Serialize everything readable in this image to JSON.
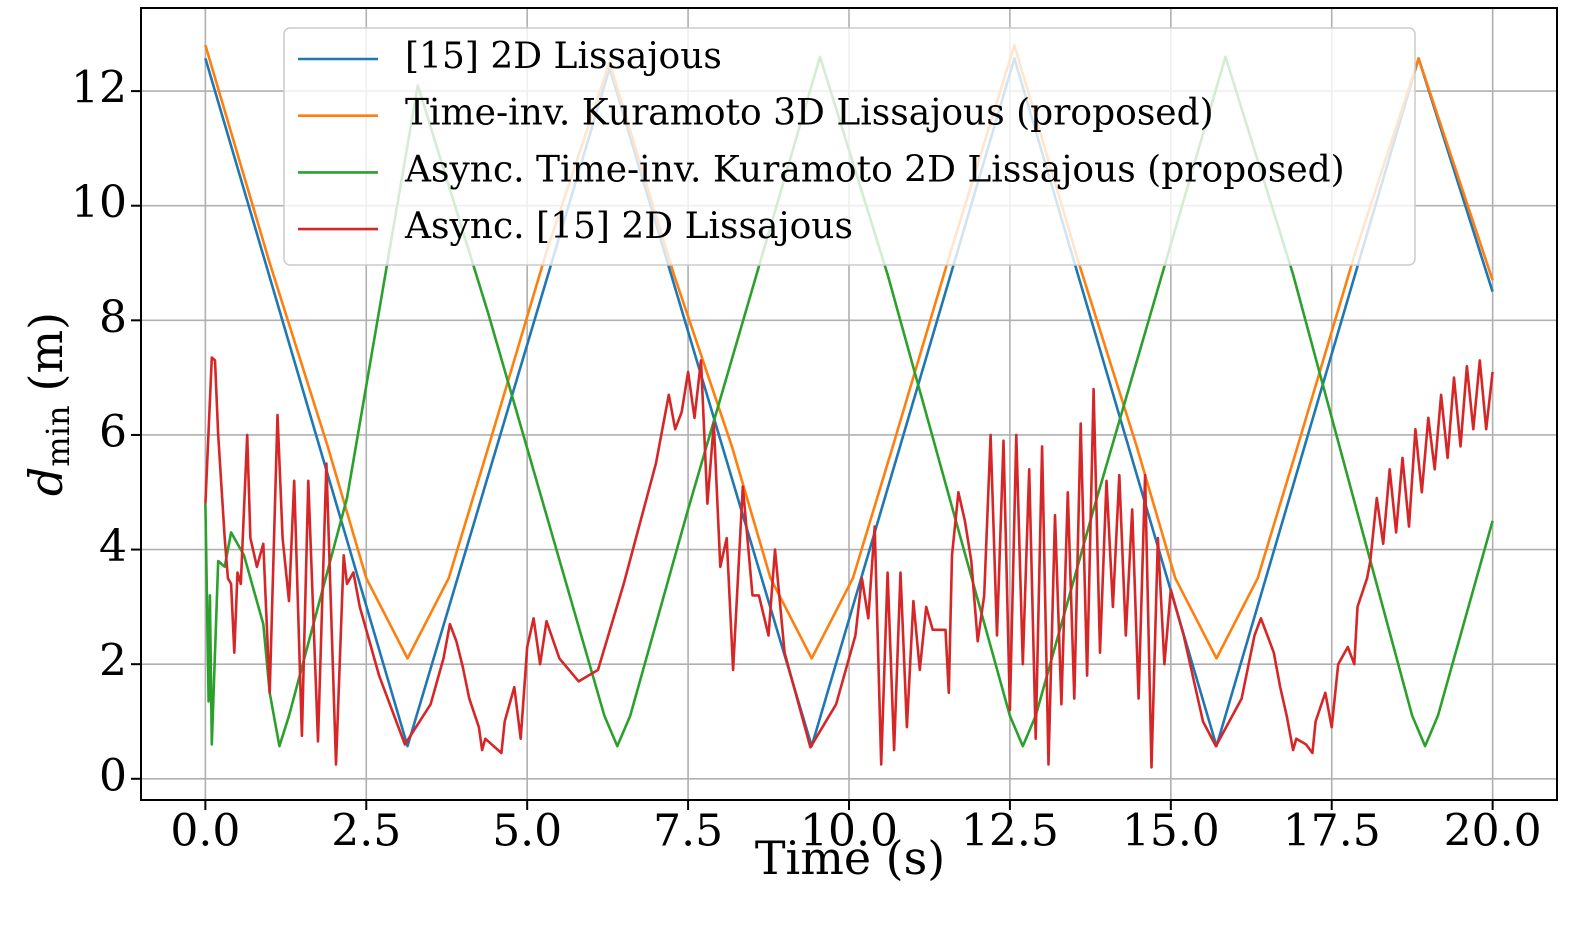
{
  "chart_data": {
    "type": "line",
    "xlabel": "Time (s)",
    "ylabel": [
      "d",
      "min",
      "(m)"
    ],
    "xlim": [
      -1,
      21
    ],
    "ylim": [
      -0.37,
      13.45
    ],
    "xticks": [
      {
        "value": 0,
        "label": "0.0"
      },
      2.5,
      {
        "value": 5,
        "label": "5.0"
      },
      7.5,
      {
        "value": 10,
        "label": "10.0"
      },
      12.5,
      {
        "value": 15,
        "label": "15.0"
      },
      17.5,
      {
        "value": 20,
        "label": "20.0"
      }
    ],
    "yticks": [
      0,
      2,
      4,
      6,
      8,
      10,
      12
    ],
    "grid": true,
    "legend": "top",
    "series": [
      {
        "name": "[15] 2D Lissajous",
        "color": "#1f77b4",
        "x": [
          0,
          3.14,
          6.28,
          9.42,
          12.57,
          15.71,
          18.85,
          20
        ],
        "values": [
          12.57,
          0.57,
          12.4,
          0.57,
          12.57,
          0.57,
          12.57,
          8.5
        ]
      },
      {
        "name": "Time-inv. Kuramoto 3D Lissajous (proposed)",
        "color": "#ff7f0e",
        "x": [
          0,
          1,
          1.9,
          2.5,
          3.14,
          3.78,
          4.4,
          5.3,
          6.28,
          7.28,
          8.18,
          8.78,
          9.42,
          10.06,
          10.68,
          11.58,
          12.57,
          13.57,
          14.47,
          15.07,
          15.71,
          16.35,
          16.97,
          17.87,
          18.85,
          20
        ],
        "values": [
          12.8,
          9.0,
          5.8,
          3.5,
          2.1,
          3.5,
          5.8,
          9.2,
          12.5,
          8.8,
          5.8,
          3.5,
          2.1,
          3.5,
          5.8,
          9.2,
          12.8,
          9.0,
          5.8,
          3.5,
          2.1,
          3.5,
          5.8,
          9.2,
          12.57,
          8.7
        ]
      },
      {
        "name": "Async. Time-inv. Kuramoto 2D Lissajous (proposed)",
        "color": "#2ca02c",
        "x": [
          0,
          0.05,
          0.07,
          0.1,
          0.2,
          0.3,
          0.4,
          0.55,
          0.6,
          0.9,
          1.0,
          1.15,
          1.3,
          2.2,
          3.3,
          4.4,
          6.2,
          6.4,
          6.6,
          7.5,
          9.55,
          10.6,
          12.5,
          12.7,
          12.9,
          13.8,
          15.85,
          16.9,
          18.75,
          18.95,
          19.15,
          20
        ],
        "values": [
          4.8,
          1.35,
          3.2,
          0.6,
          3.8,
          3.7,
          4.3,
          4.0,
          3.9,
          2.7,
          1.5,
          0.57,
          1.1,
          4.9,
          12.1,
          8.1,
          1.1,
          0.57,
          1.1,
          4.7,
          12.6,
          8.8,
          1.1,
          0.57,
          1.1,
          4.7,
          12.6,
          8.8,
          1.1,
          0.57,
          1.1,
          4.5
        ]
      },
      {
        "name": "Async. [15] 2D Lissajous",
        "color": "#d62728",
        "x": [
          0,
          0.1,
          0.15,
          0.2,
          0.3,
          0.35,
          0.4,
          0.45,
          0.5,
          0.55,
          0.65,
          0.7,
          0.8,
          0.9,
          1.0,
          1.12,
          1.2,
          1.3,
          1.38,
          1.5,
          1.6,
          1.75,
          1.88,
          2.03,
          2.15,
          2.2,
          2.3,
          2.4,
          2.7,
          3.1,
          3.5,
          3.7,
          3.8,
          3.9,
          4.0,
          4.1,
          4.25,
          4.3,
          4.35,
          4.5,
          4.6,
          4.65,
          4.8,
          4.9,
          5.0,
          5.1,
          5.2,
          5.3,
          5.5,
          5.8,
          6.1,
          6.5,
          7.0,
          7.2,
          7.3,
          7.4,
          7.5,
          7.6,
          7.7,
          7.8,
          7.9,
          8.0,
          8.1,
          8.2,
          8.35,
          8.5,
          8.6,
          8.75,
          8.85,
          9.0,
          9.4,
          9.8,
          10.1,
          10.2,
          10.3,
          10.4,
          10.5,
          10.6,
          10.7,
          10.8,
          10.9,
          11.0,
          11.1,
          11.2,
          11.3,
          11.5,
          11.55,
          11.6,
          11.7,
          11.8,
          11.9,
          12.0,
          12.1,
          12.2,
          12.3,
          12.4,
          12.5,
          12.6,
          12.7,
          12.8,
          12.9,
          13.0,
          13.1,
          13.2,
          13.3,
          13.4,
          13.5,
          13.6,
          13.7,
          13.8,
          13.9,
          14.0,
          14.1,
          14.2,
          14.3,
          14.4,
          14.5,
          14.6,
          14.7,
          14.8,
          14.9,
          15.0,
          15.2,
          15.5,
          15.7,
          16.1,
          16.3,
          16.4,
          16.5,
          16.6,
          16.7,
          16.8,
          16.9,
          16.95,
          17.1,
          17.2,
          17.25,
          17.4,
          17.5,
          17.6,
          17.75,
          17.85,
          17.9,
          18.05,
          18.1,
          18.2,
          18.3,
          18.4,
          18.5,
          18.6,
          18.7,
          18.8,
          18.9,
          19.0,
          19.1,
          19.2,
          19.3,
          19.4,
          19.5,
          19.6,
          19.7,
          19.8,
          19.9,
          20.0
        ],
        "values": [
          4.8,
          7.35,
          7.3,
          6.0,
          4.2,
          3.5,
          3.4,
          2.2,
          3.6,
          3.4,
          6.0,
          4.2,
          3.7,
          4.1,
          1.5,
          6.35,
          4.2,
          3.1,
          5.2,
          0.75,
          5.2,
          0.65,
          5.5,
          0.25,
          3.9,
          3.4,
          3.6,
          3.0,
          1.8,
          0.6,
          1.3,
          2.1,
          2.7,
          2.4,
          1.95,
          1.4,
          0.9,
          0.5,
          0.7,
          0.55,
          0.45,
          1.0,
          1.6,
          0.7,
          2.3,
          2.8,
          2.0,
          2.75,
          2.1,
          1.7,
          1.9,
          3.4,
          5.5,
          6.7,
          6.1,
          6.4,
          7.1,
          6.3,
          7.3,
          4.8,
          6.2,
          3.7,
          4.2,
          1.9,
          5.1,
          3.2,
          3.2,
          2.5,
          4.0,
          2.2,
          0.55,
          1.3,
          2.5,
          3.5,
          2.8,
          4.4,
          0.25,
          3.6,
          0.5,
          3.6,
          0.9,
          3.1,
          1.9,
          3.0,
          2.6,
          2.6,
          1.5,
          3.9,
          5.0,
          4.5,
          3.8,
          2.4,
          3.2,
          6.0,
          2.5,
          5.9,
          1.2,
          6.0,
          2.0,
          5.4,
          0.7,
          5.8,
          0.25,
          4.6,
          1.3,
          5.0,
          1.4,
          6.2,
          1.8,
          6.8,
          2.2,
          5.2,
          3.0,
          5.3,
          2.5,
          4.7,
          1.4,
          5.3,
          0.2,
          4.2,
          2.0,
          3.3,
          2.5,
          1.0,
          0.57,
          1.4,
          2.5,
          2.8,
          2.5,
          2.2,
          1.6,
          1.1,
          0.5,
          0.7,
          0.6,
          0.45,
          1.0,
          1.5,
          0.9,
          2.0,
          2.3,
          2.0,
          3.0,
          3.5,
          3.8,
          4.9,
          4.1,
          5.4,
          4.3,
          5.6,
          4.4,
          6.1,
          5.0,
          6.3,
          5.4,
          6.7,
          5.6,
          7.0,
          5.8,
          7.2,
          6.1,
          7.3,
          6.1,
          7.1
        ]
      }
    ]
  }
}
